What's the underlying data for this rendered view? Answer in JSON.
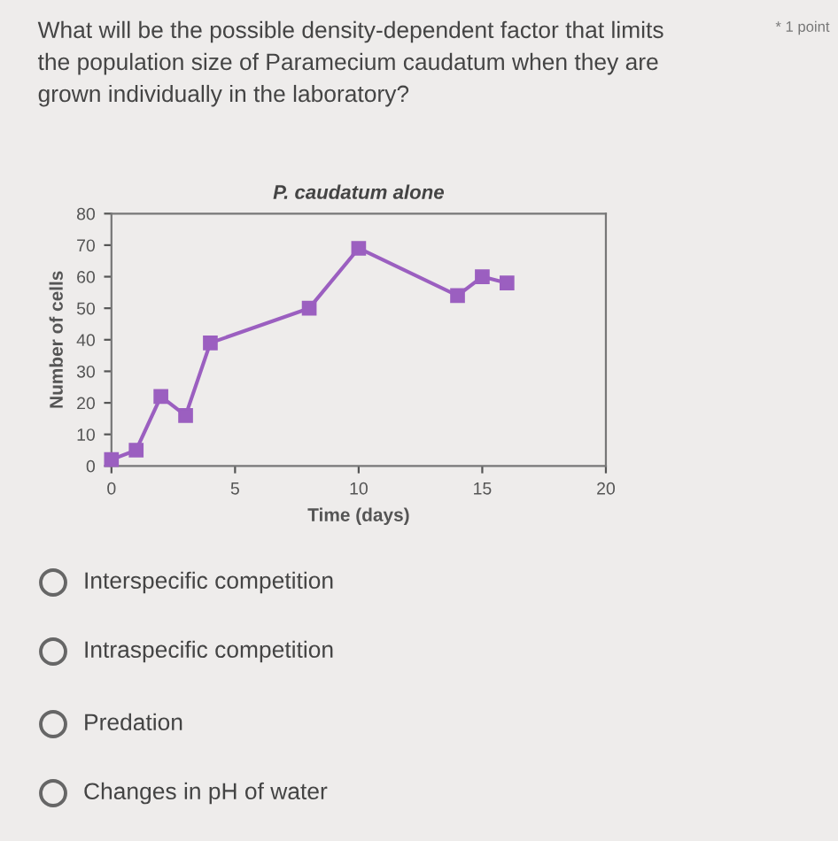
{
  "chart_data": {
    "type": "line",
    "title": "P. caudatum alone",
    "xlabel": "Time (days)",
    "ylabel": "Number of cells",
    "x": [
      0,
      1,
      2,
      3,
      4,
      8,
      10,
      14,
      15,
      16
    ],
    "series": [
      {
        "color": "#9b5fc0",
        "values": [
          2,
          5,
          22,
          16,
          39,
          50,
          69,
          54,
          60,
          58
        ]
      }
    ],
    "xlim": [
      0,
      20
    ],
    "xticks": [
      0,
      5,
      10,
      15,
      20
    ],
    "ylim": [
      0,
      80
    ],
    "yticks": [
      0,
      10,
      20,
      30,
      40,
      50,
      60,
      70,
      80
    ],
    "marker": "square",
    "grid": false,
    "legend": false,
    "annotations": [
      "What will be the possible density-dependent factor that limits\nthe population size of Paramecium caudatum when they are\ngrown individually in the laboratory?",
      "* 1 point",
      "Interspecific competition",
      "Intraspecific competition",
      "Predation",
      "Changes in pH of water"
    ]
  }
}
